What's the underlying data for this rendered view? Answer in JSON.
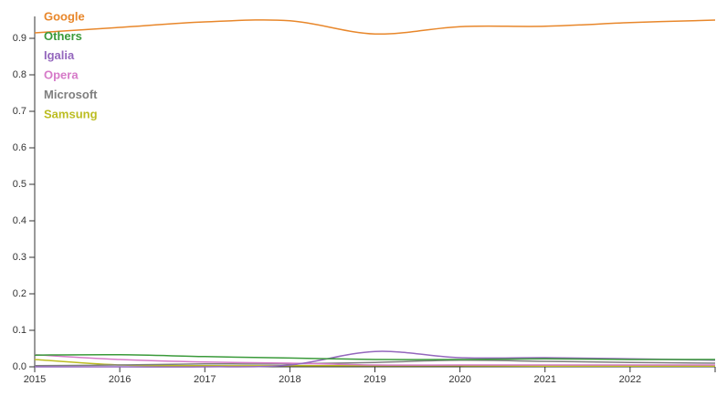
{
  "chart_data": {
    "type": "line",
    "x": [
      2015,
      2016,
      2017,
      2018,
      2019,
      2020,
      2021,
      2022,
      2023
    ],
    "xlim": [
      2015,
      2023
    ],
    "xticks": [
      2015,
      2016,
      2017,
      2018,
      2019,
      2020,
      2021,
      2022
    ],
    "ylim": [
      0,
      0.95
    ],
    "yticks": [
      {
        "value": 0,
        "label": "0.0"
      },
      0.1,
      0.2,
      0.3,
      0.4,
      0.5,
      0.6,
      0.7,
      0.8,
      0.9
    ],
    "legend": "top-left",
    "series": [
      {
        "name": "Google",
        "color": "#e8872b",
        "values": [
          0.915,
          0.93,
          0.945,
          0.948,
          0.912,
          0.932,
          0.933,
          0.943,
          0.95
        ]
      },
      {
        "name": "Others",
        "color": "#3a9a3a",
        "values": [
          0.032,
          0.033,
          0.028,
          0.024,
          0.02,
          0.02,
          0.022,
          0.02,
          0.02
        ]
      },
      {
        "name": "Igalia",
        "color": "#9467bd",
        "values": [
          0,
          0,
          0,
          0.005,
          0.042,
          0.025,
          0.025,
          0.022,
          0.018
        ]
      },
      {
        "name": "Opera",
        "color": "#d67ac8",
        "values": [
          0.033,
          0.02,
          0.013,
          0.01,
          0.005,
          0.005,
          0.005,
          0.005,
          0.005
        ]
      },
      {
        "name": "Microsoft",
        "color": "#7f7f7f",
        "values": [
          0.003,
          0.005,
          0.008,
          0.008,
          0.012,
          0.018,
          0.015,
          0.012,
          0.01
        ]
      },
      {
        "name": "Samsung",
        "color": "#bcbd22",
        "values": [
          0.02,
          0.005,
          0.003,
          0.003,
          0.003,
          0.003,
          0.002,
          0.002,
          0.002
        ]
      }
    ]
  }
}
